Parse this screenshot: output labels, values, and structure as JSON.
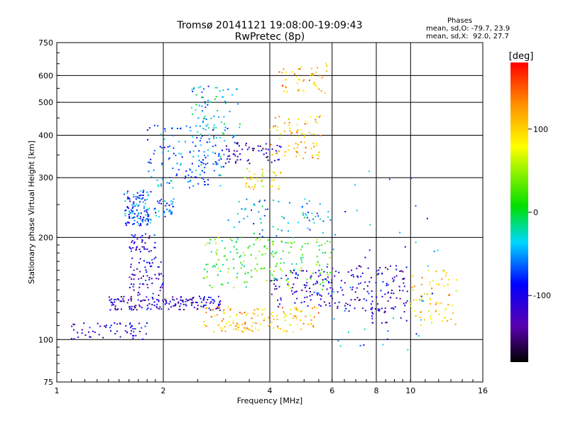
{
  "header": {
    "title_line1": "Tromsø 20141121 19:08:00-19:09:43",
    "title_line2": "RwPretec (8p)"
  },
  "phases": {
    "heading": "Phases",
    "o_line": "mean, sd,O: -79.7, 23.9",
    "x_line": "mean, sd,X:  92.0, 27.7"
  },
  "colorbar": {
    "unit_label": "[deg]",
    "ticks": [
      "100",
      "0",
      "-100"
    ],
    "tick_values": [
      100,
      0,
      -100
    ],
    "range": [
      -180,
      180
    ]
  },
  "chart_data": {
    "type": "scatter",
    "title": "Tromsø 20141121 19:08:00-19:09:43",
    "subtitle": "RwPretec (8p)",
    "xlabel": "Frequency [MHz]",
    "ylabel": "Stationary phase Virtual Height [km]",
    "x_scale": "log",
    "y_scale": "log",
    "xlim": [
      1,
      16
    ],
    "ylim": [
      75,
      750
    ],
    "grid": true,
    "x_ticks": [
      1,
      2,
      4,
      6,
      8,
      10,
      16
    ],
    "x_tick_labels": [
      "1",
      "2",
      "4",
      "6",
      "8",
      "10",
      "16"
    ],
    "y_ticks": [
      75,
      100,
      200,
      300,
      400,
      500,
      600,
      750
    ],
    "y_tick_labels": [
      "75",
      "100",
      "200",
      "300",
      "400",
      "500",
      "600",
      "750"
    ],
    "color_by": "phase [deg]",
    "clusters": [
      {
        "f": [
          1.1,
          1.8
        ],
        "h": [
          100,
          112
        ],
        "phase": -110,
        "n": 60
      },
      {
        "f": [
          1.4,
          2.9
        ],
        "h": [
          122,
          134
        ],
        "phase": -115,
        "n": 170
      },
      {
        "f": [
          1.6,
          2.0
        ],
        "h": [
          135,
          175
        ],
        "phase": -110,
        "n": 70
      },
      {
        "f": [
          1.6,
          1.9
        ],
        "h": [
          180,
          205
        ],
        "phase": -110,
        "n": 40
      },
      {
        "f": [
          1.55,
          1.85
        ],
        "h": [
          215,
          275
        ],
        "phase": -70,
        "n": 130
      },
      {
        "f": [
          1.85,
          2.15
        ],
        "h": [
          230,
          260
        ],
        "phase": -60,
        "n": 35
      },
      {
        "f": [
          1.8,
          3.0
        ],
        "h": [
          280,
          430
        ],
        "phase": -60,
        "n": 160
      },
      {
        "f": [
          2.4,
          3.4
        ],
        "h": [
          380,
          560
        ],
        "phase": -40,
        "n": 80
      },
      {
        "f": [
          3.0,
          4.3
        ],
        "h": [
          330,
          380
        ],
        "phase": -120,
        "n": 60
      },
      {
        "f": [
          3.4,
          4.3
        ],
        "h": [
          275,
          320
        ],
        "phase": 90,
        "n": 40
      },
      {
        "f": [
          4.0,
          5.6
        ],
        "h": [
          340,
          460
        ],
        "phase": 110,
        "n": 80
      },
      {
        "f": [
          4.2,
          6.0
        ],
        "h": [
          530,
          650
        ],
        "phase": 110,
        "n": 50
      },
      {
        "f": [
          2.6,
          5.5
        ],
        "h": [
          105,
          125
        ],
        "phase": 110,
        "n": 140
      },
      {
        "f": [
          2.6,
          6.0
        ],
        "h": [
          140,
          200
        ],
        "phase": 20,
        "n": 180
      },
      {
        "f": [
          3.0,
          6.0
        ],
        "h": [
          200,
          260
        ],
        "phase": -40,
        "n": 70
      },
      {
        "f": [
          4.0,
          6.0
        ],
        "h": [
          125,
          160
        ],
        "phase": -110,
        "n": 90
      },
      {
        "f": [
          5.8,
          7.5
        ],
        "h": [
          120,
          165
        ],
        "phase": -110,
        "n": 60
      },
      {
        "f": [
          7.5,
          9.8
        ],
        "h": [
          112,
          165
        ],
        "phase": -110,
        "n": 90
      },
      {
        "f": [
          10.0,
          13.5
        ],
        "h": [
          110,
          160
        ],
        "phase": 100,
        "n": 70
      },
      {
        "f": [
          6.0,
          12.0
        ],
        "h": [
          90,
          320
        ],
        "phase": -60,
        "n": 45
      }
    ]
  }
}
